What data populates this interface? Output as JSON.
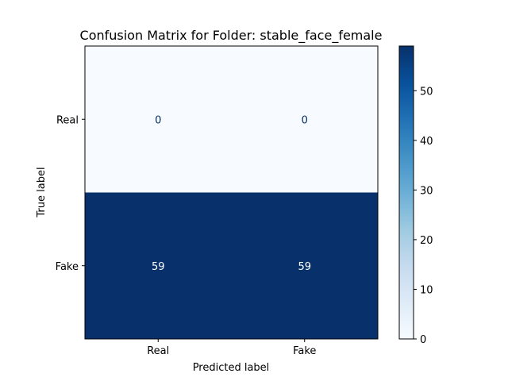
{
  "chart_data": {
    "type": "heatmap",
    "title": "Confusion Matrix for Folder: stable_face_female",
    "xlabel": "Predicted label",
    "ylabel": "True label",
    "x_categories": [
      "Real",
      "Fake"
    ],
    "y_categories": [
      "Real",
      "Fake"
    ],
    "values": [
      [
        0,
        0
      ],
      [
        59,
        59
      ]
    ],
    "colormap": "Blues",
    "colorbar": {
      "range": [
        0,
        59
      ],
      "ticks": [
        0,
        10,
        20,
        30,
        40,
        50
      ],
      "tick_labels": [
        "0",
        "10",
        "20",
        "30",
        "40",
        "50"
      ]
    },
    "colors": {
      "low": "#f7fbff",
      "high": "#08306b",
      "text_on_low": "#08306b",
      "text_on_high": "#ffffff"
    }
  }
}
